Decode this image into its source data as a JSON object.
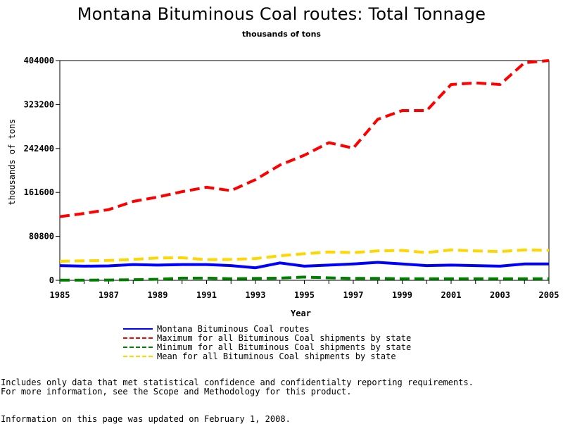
{
  "chart_data": {
    "type": "line",
    "title": "Montana Bituminous Coal routes: Total Tonnage",
    "subtitle": "thousands of tons",
    "xlabel": "Year",
    "ylabel": "thousands of tons",
    "xlim": [
      1985,
      2005
    ],
    "ylim": [
      0,
      404000
    ],
    "x_ticks": [
      "1985",
      "1987",
      "1989",
      "1991",
      "1993",
      "1995",
      "1997",
      "1999",
      "2001",
      "2003",
      "2005"
    ],
    "y_ticks": [
      "0",
      "80800",
      "161600",
      "242400",
      "323200",
      "404000"
    ],
    "grid": false,
    "legend_position": "bottom",
    "x": [
      1985,
      1986,
      1987,
      1988,
      1989,
      1990,
      1991,
      1992,
      1993,
      1994,
      1995,
      1996,
      1997,
      1998,
      1999,
      2000,
      2001,
      2002,
      2003,
      2004,
      2005
    ],
    "series": [
      {
        "name": "Montana Bituminous Coal routes",
        "color": "#0000ff",
        "style": "solid",
        "values": [
          27000,
          26000,
          26500,
          29000,
          28000,
          29000,
          29000,
          27000,
          23000,
          32000,
          26000,
          28000,
          30000,
          33000,
          30000,
          27000,
          28000,
          27000,
          26000,
          30000,
          30000
        ]
      },
      {
        "name": "Maximum for all Bituminous Coal shipments by state",
        "color": "#ff0000",
        "style": "dashed",
        "values": [
          117000,
          123000,
          130000,
          145000,
          153000,
          163000,
          171000,
          165000,
          185000,
          212000,
          230000,
          253000,
          243000,
          296000,
          312000,
          312000,
          360000,
          363000,
          360000,
          400000,
          404000
        ]
      },
      {
        "name": "Minimum for all Bituminous Coal shipments by state",
        "color": "#008000",
        "style": "dashed",
        "values": [
          200,
          200,
          500,
          1200,
          2000,
          4000,
          4000,
          3000,
          3500,
          4000,
          6000,
          4500,
          3500,
          3500,
          3000,
          3000,
          3000,
          3000,
          3000,
          3000,
          3000
        ]
      },
      {
        "name": "Mean for all Bituminous Coal shipments by state",
        "color": "#ffd700",
        "style": "dashed",
        "values": [
          35000,
          36000,
          36500,
          38500,
          41000,
          41500,
          38000,
          38500,
          40000,
          45000,
          49000,
          52000,
          51000,
          54000,
          55000,
          51000,
          56000,
          54000,
          53000,
          56000,
          55000
        ]
      }
    ]
  },
  "footnotes": {
    "line1": "Includes only data that met statistical confidence and confidentialty reporting requirements.",
    "line2": "For more information, see the Scope and Methodology for this product.",
    "line3": "Information on this page was updated on February 1, 2008."
  }
}
